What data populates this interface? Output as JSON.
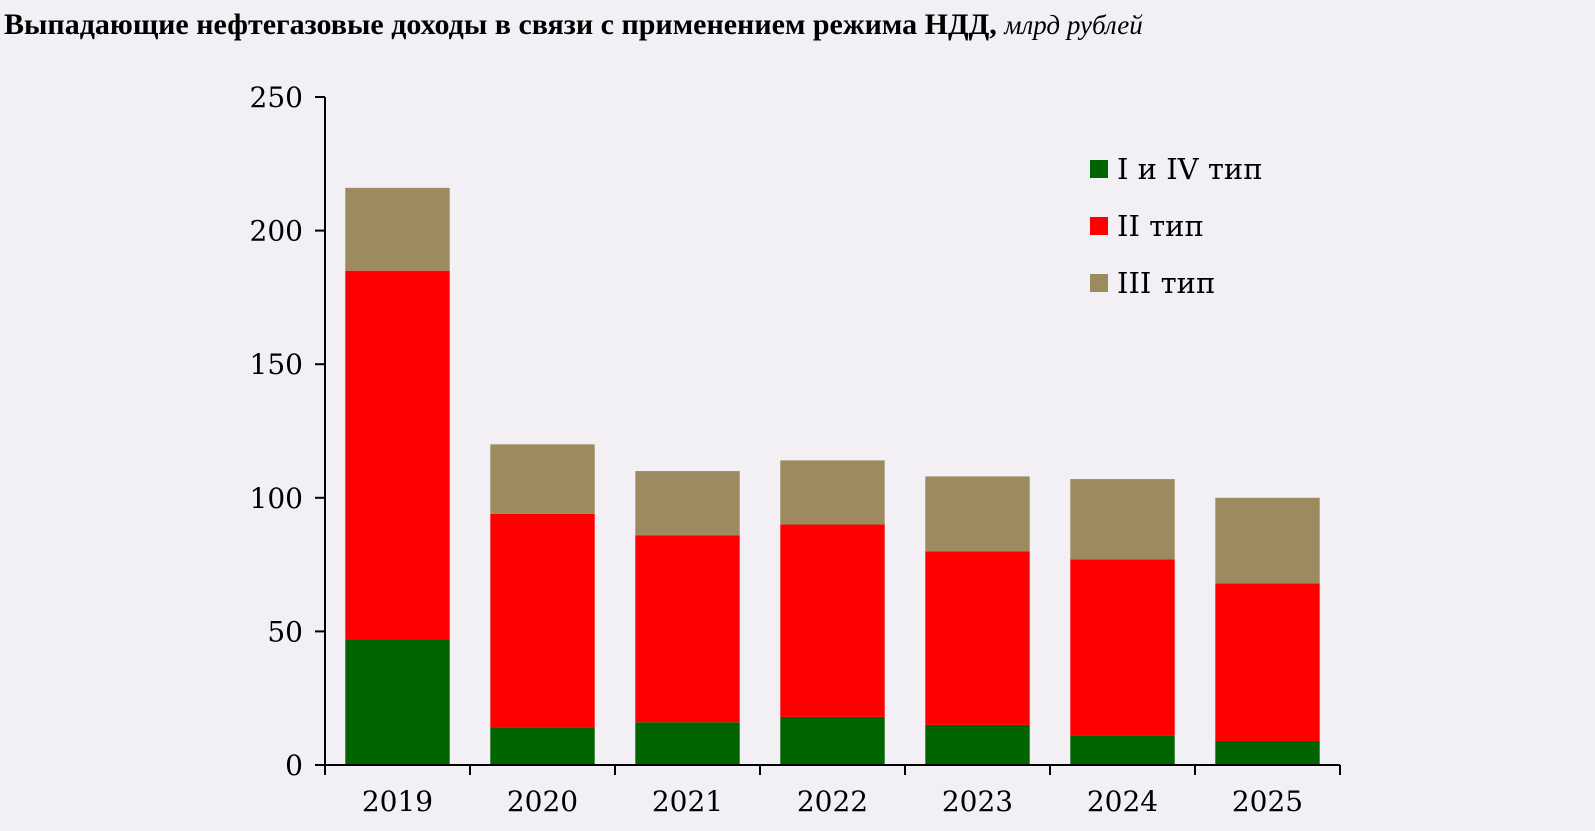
{
  "chart_data": {
    "type": "bar",
    "stacked": true,
    "title": "Выпадающие нефтегазовые доходы в связи с применением режима НДД,",
    "unit": "млрд рублей",
    "xlabel": "",
    "ylabel": "",
    "ylim": [
      0,
      250
    ],
    "yticks": [
      0,
      50,
      100,
      150,
      200,
      250
    ],
    "grid": false,
    "legend_position": "top-right",
    "categories": [
      "2019",
      "2020",
      "2021",
      "2022",
      "2023",
      "2024",
      "2025"
    ],
    "series": [
      {
        "name": "I и IV тип",
        "color": "#006400",
        "values": [
          47,
          14,
          16,
          18,
          15,
          11,
          9
        ]
      },
      {
        "name": "II тип",
        "color": "#ff0000",
        "values": [
          138,
          80,
          70,
          72,
          65,
          66,
          59
        ]
      },
      {
        "name": "III тип",
        "color": "#9b8b5e",
        "values": [
          31,
          26,
          24,
          24,
          28,
          30,
          32
        ]
      }
    ]
  }
}
